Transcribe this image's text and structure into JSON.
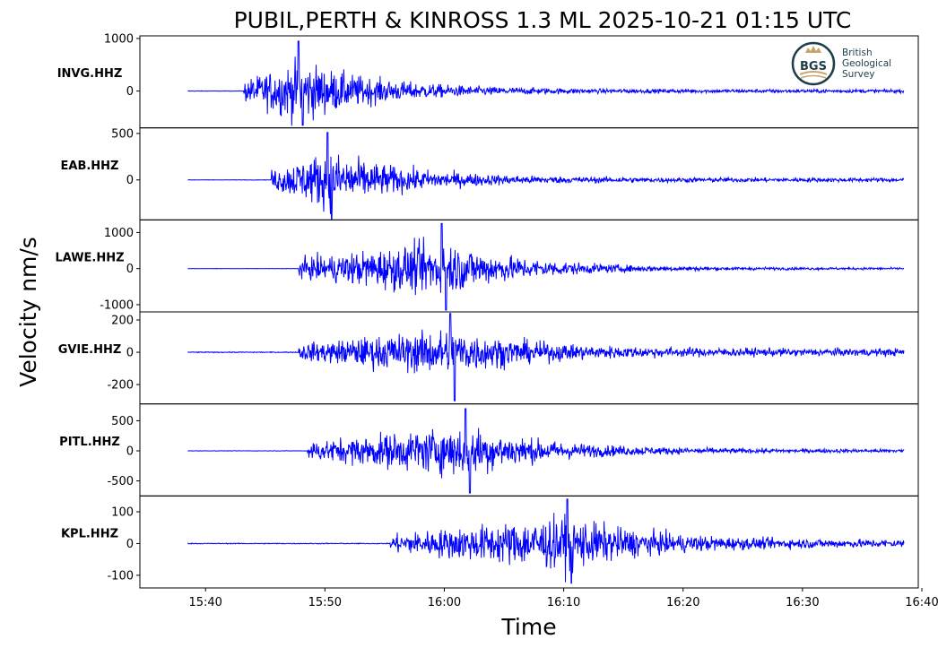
{
  "chart_data": {
    "type": "line",
    "title": "PUBIL,PERTH & KINROSS 1.3 ML   2025-10-21 01:15 UTC",
    "xlabel": "Time",
    "ylabel": "Velocity nm/s",
    "line_color": "#0000ff",
    "x_ticks": [
      "15:40",
      "15:50",
      "16:00",
      "16:10",
      "16:20",
      "16:30",
      "16:40"
    ],
    "x_range": [
      "15:38.5",
      "16:38.5"
    ],
    "panels": [
      {
        "station": "INVG.HHZ",
        "ylim": [
          -700,
          1050
        ],
        "yticks": [
          1000,
          0
        ],
        "ytick_labels": [
          "1000",
          "0"
        ],
        "onset": "15:43.2",
        "peak_time": "15:47.8",
        "peak_amp": 950,
        "min_amp": -650,
        "coda_amp": 30
      },
      {
        "station": "EAB.HHZ",
        "ylim": [
          -430,
          560
        ],
        "yticks": [
          500,
          0
        ],
        "ytick_labels": [
          "500",
          "0"
        ],
        "onset": "15:45.5",
        "peak_time": "15:50.2",
        "peak_amp": 510,
        "min_amp": -420,
        "coda_amp": 20
      },
      {
        "station": "LAWE.HHZ",
        "ylim": [
          -1200,
          1350
        ],
        "yticks": [
          1000,
          0,
          -1000
        ],
        "ytick_labels": [
          "1000",
          "0",
          "-1000"
        ],
        "onset": "15:47.8",
        "peak_time": "15:59.8",
        "peak_amp": 1250,
        "min_amp": -1150,
        "coda_amp": 25
      },
      {
        "station": "GVIE.HHZ",
        "ylim": [
          -320,
          250
        ],
        "yticks": [
          200,
          0,
          -200
        ],
        "ytick_labels": [
          "200",
          "0",
          "-200"
        ],
        "onset": "15:47.8",
        "peak_time": "16:00.5",
        "peak_amp": 240,
        "min_amp": -300,
        "coda_amp": 20
      },
      {
        "station": "PITL.HHZ",
        "ylim": [
          -750,
          780
        ],
        "yticks": [
          500,
          0,
          -500
        ],
        "ytick_labels": [
          "500",
          "0",
          "-500"
        ],
        "onset": "15:48.5",
        "peak_time": "16:01.8",
        "peak_amp": 700,
        "min_amp": -700,
        "coda_amp": 25
      },
      {
        "station": "KPL.HHZ",
        "ylim": [
          -140,
          150
        ],
        "yticks": [
          100,
          0,
          -100
        ],
        "ytick_labels": [
          "100",
          "0",
          "-100"
        ],
        "onset": "15:55.5",
        "peak_time": "16:10.3",
        "peak_amp": 140,
        "min_amp": -125,
        "coda_amp": 10
      }
    ]
  },
  "logo": {
    "mark": "BGS",
    "line1": "British",
    "line2": "Geological",
    "line3": "Survey"
  }
}
